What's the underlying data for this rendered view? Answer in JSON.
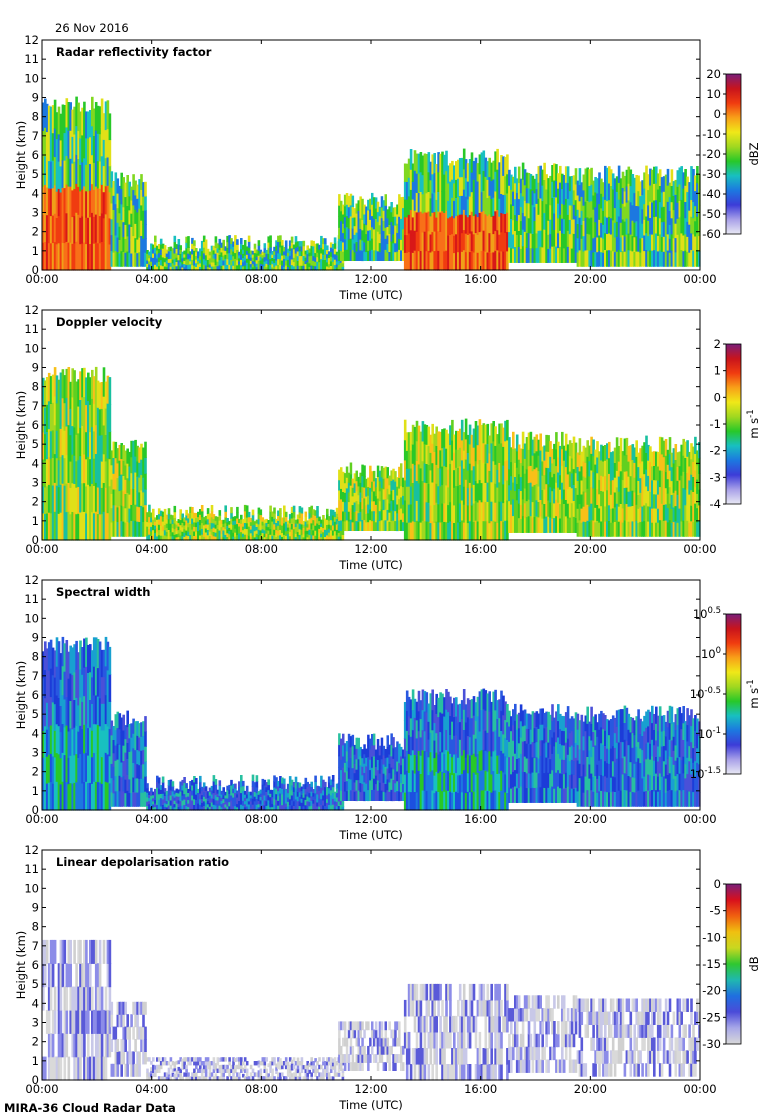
{
  "header": {
    "date": "26 Nov 2016"
  },
  "footer": {
    "source": "MIRA-36 Cloud Radar Data"
  },
  "colors": {
    "white": "#ffffff",
    "lightgray": "#d9d9d9",
    "violet": "#7a1f7a",
    "red": "#e8000c",
    "green": "#2fd42f",
    "blue": "#1f3fe0"
  },
  "chart_data": [
    {
      "type": "heatmap",
      "title": "Radar reflectivity factor",
      "xlabel": "Time (UTC)",
      "ylabel": "Height (km)",
      "x_ticks": [
        "00:00",
        "04:00",
        "08:00",
        "12:00",
        "16:00",
        "20:00",
        "00:00"
      ],
      "y_ticks": [
        0,
        1,
        2,
        3,
        4,
        5,
        6,
        7,
        8,
        9,
        10,
        11,
        12
      ],
      "xlim": [
        0,
        24
      ],
      "ylim": [
        0,
        12
      ],
      "colorbar": {
        "label": "dBZ",
        "ticks": [
          "20",
          "10",
          "0",
          "-10",
          "-20",
          "-30",
          "-40",
          "-50",
          "-60"
        ],
        "range": [
          -60,
          20
        ]
      }
    },
    {
      "type": "heatmap",
      "title": "Doppler velocity",
      "xlabel": "Time (UTC)",
      "ylabel": "Height (km)",
      "x_ticks": [
        "00:00",
        "04:00",
        "08:00",
        "12:00",
        "16:00",
        "20:00",
        "00:00"
      ],
      "y_ticks": [
        0,
        1,
        2,
        3,
        4,
        5,
        6,
        7,
        8,
        9,
        10,
        11,
        12
      ],
      "xlim": [
        0,
        24
      ],
      "ylim": [
        0,
        12
      ],
      "colorbar": {
        "label": "m s",
        "label_sup": "-1",
        "ticks": [
          "2",
          "1",
          "0",
          "-1",
          "-2",
          "-3",
          "-4"
        ],
        "range": [
          -4,
          2
        ]
      }
    },
    {
      "type": "heatmap",
      "title": "Spectral width",
      "xlabel": "Time (UTC)",
      "ylabel": "Height (km)",
      "x_ticks": [
        "00:00",
        "04:00",
        "08:00",
        "12:00",
        "16:00",
        "20:00",
        "00:00"
      ],
      "y_ticks": [
        0,
        1,
        2,
        3,
        4,
        5,
        6,
        7,
        8,
        9,
        10,
        11,
        12
      ],
      "xlim": [
        0,
        24
      ],
      "ylim": [
        0,
        12
      ],
      "colorbar": {
        "label": "m s",
        "label_sup": "-1",
        "ticks": [
          "10^0.5",
          "10^0",
          "10^-0.5",
          "10^-1",
          "10^-1.5"
        ],
        "scale": "log",
        "range": [
          -1.5,
          0.5
        ]
      }
    },
    {
      "type": "heatmap",
      "title": "Linear depolarisation ratio",
      "xlabel": "Time (UTC)",
      "ylabel": "Height (km)",
      "x_ticks": [
        "00:00",
        "04:00",
        "08:00",
        "12:00",
        "16:00",
        "20:00",
        "00:00"
      ],
      "y_ticks": [
        0,
        1,
        2,
        3,
        4,
        5,
        6,
        7,
        8,
        9,
        10,
        11,
        12
      ],
      "xlim": [
        0,
        24
      ],
      "ylim": [
        0,
        12
      ],
      "colorbar": {
        "label": "dB",
        "ticks": [
          "0",
          "-5",
          "-10",
          "-15",
          "-20",
          "-25",
          "-30"
        ],
        "range": [
          -30,
          0
        ]
      }
    }
  ]
}
